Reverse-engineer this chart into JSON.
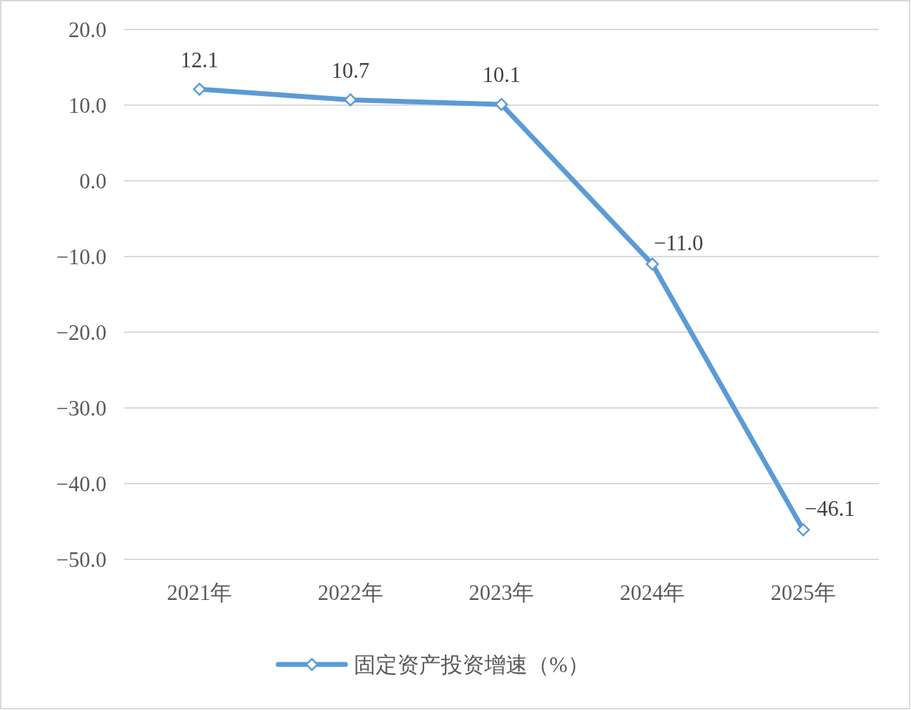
{
  "chart_data": {
    "type": "line",
    "categories": [
      "2021年",
      "2022年",
      "2023年",
      "2024年",
      "2025年"
    ],
    "series": [
      {
        "name": "固定资产投资增速（%）",
        "color": "#5b9bd5",
        "values": [
          12.1,
          10.7,
          10.1,
          -11.0,
          -46.1
        ],
        "value_labels": [
          "12.1",
          "10.7",
          "10.1",
          "−11.0",
          "−46.1"
        ]
      }
    ],
    "ylim": [
      -50,
      20
    ],
    "yticks": [
      {
        "value": 20,
        "label": "20.0"
      },
      {
        "value": 10,
        "label": "10.0"
      },
      {
        "value": 0,
        "label": "0.0"
      },
      {
        "value": -10,
        "label": "−10.0"
      },
      {
        "value": -20,
        "label": "−20.0"
      },
      {
        "value": -30,
        "label": "−30.0"
      },
      {
        "value": -40,
        "label": "−40.0"
      },
      {
        "value": -50,
        "label": "−50.0"
      }
    ],
    "grid": "y",
    "legend": "bottom",
    "marker": "diamond"
  }
}
